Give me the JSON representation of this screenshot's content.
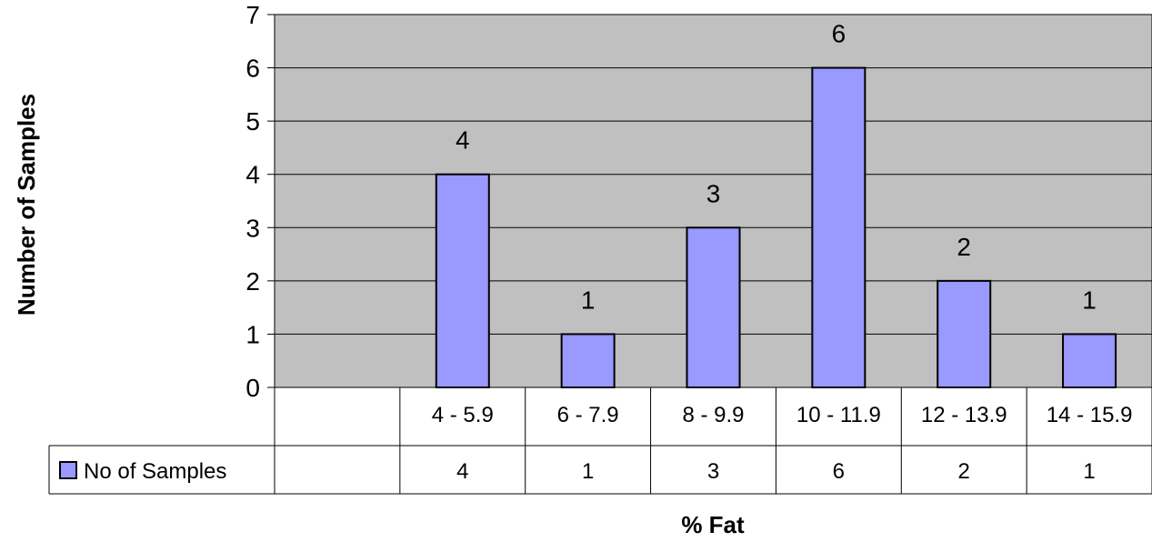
{
  "chart_data": {
    "type": "bar",
    "title": "",
    "xlabel": "% Fat",
    "ylabel": "Number of Samples",
    "categories": [
      "",
      "4 - 5.9",
      "6 - 7.9",
      "8 - 9.9",
      "10 - 11.9",
      "12 - 13.9",
      "14 - 15.9"
    ],
    "series": [
      {
        "name": "No of Samples",
        "values": [
          null,
          4,
          1,
          3,
          6,
          2,
          1
        ],
        "color": "#9999ff"
      }
    ],
    "ylim": [
      0,
      7
    ],
    "yticks": [
      0,
      1,
      2,
      3,
      4,
      5,
      6,
      7
    ],
    "grid": true,
    "data_labels": true,
    "data_table": true,
    "plot_background": "#c0c0c0"
  }
}
